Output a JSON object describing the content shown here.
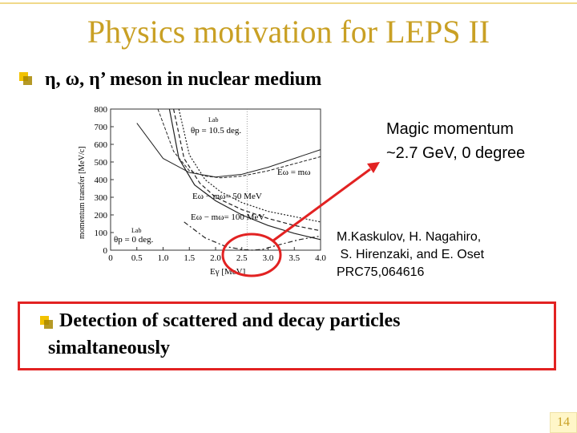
{
  "slide": {
    "title": "Physics motivation for LEPS II",
    "bullet1": "η,  ω, η’ meson in nuclear medium",
    "bullet2_line1": "Detection of scattered and decay particles",
    "bullet2_line2": "simaltaneously",
    "page_number": "14"
  },
  "annotations": {
    "magic_line1": "Magic momentum",
    "magic_line2": "~2.7 GeV, 0 degree",
    "ref_line1": "M.Kaskulov, H. Nagahiro,",
    "ref_line2": " S. Hirenzaki, and E. Oset",
    "ref_line3": "PRC75,064616"
  },
  "figure_labels": {
    "ylabel": "momentum transfer [MeV/c]",
    "xlabel": "Eγ [MeV]",
    "lab_top": "Lab",
    "theta_top": "θp = 10.5 deg.",
    "lab_bottom": "Lab",
    "theta_bottom": "θp = 0 deg.",
    "curve1": "Eω = mω",
    "curve2": "Eω − mω= 50 MeV",
    "curve3": "Eω − mω= 100 MeV"
  },
  "colors": {
    "title": "#c9a024",
    "bullet": "#f2c200",
    "highlight": "#e22222"
  },
  "chart_data": {
    "type": "line",
    "xlabel": "Eγ [MeV]",
    "ylabel": "momentum transfer [MeV/c]",
    "xlim": [
      0,
      4.0
    ],
    "ylim": [
      0,
      800
    ],
    "x_ticks": [
      "0",
      "0.5",
      "1.0",
      "1.5",
      "2.0",
      "2.5",
      "3.0",
      "3.5",
      "4.0"
    ],
    "y_ticks": [
      "0",
      "100",
      "200",
      "300",
      "400",
      "500",
      "600",
      "700",
      "800"
    ],
    "series": [
      {
        "name": "Eω = mω",
        "x": [
          1.12,
          1.3,
          1.6,
          2.0,
          2.5,
          3.0,
          3.5,
          4.0
        ],
        "y": [
          800,
          520,
          370,
          280,
          200,
          140,
          95,
          60
        ]
      },
      {
        "name": "Eω − mω= 50 MeV",
        "x": [
          1.2,
          1.4,
          1.7,
          2.0,
          2.5,
          3.0,
          3.5,
          4.0
        ],
        "y": [
          800,
          520,
          380,
          300,
          230,
          180,
          140,
          110
        ]
      },
      {
        "name": "Eω − mω= 100 MeV",
        "x": [
          1.3,
          1.5,
          1.8,
          2.1,
          2.5,
          3.0,
          3.5,
          4.0
        ],
        "y": [
          800,
          540,
          400,
          330,
          270,
          220,
          190,
          160
        ]
      },
      {
        "x": [
          1.4,
          1.8,
          2.2,
          2.5,
          2.7,
          2.9,
          3.2,
          3.6,
          4.0
        ],
        "y": [
          160,
          70,
          20,
          4,
          0,
          5,
          30,
          60,
          80
        ]
      },
      {
        "x": [
          0.5,
          1.0,
          1.5,
          2.0,
          2.5,
          3.0,
          3.5,
          4.0
        ],
        "y": [
          720,
          520,
          440,
          415,
          430,
          470,
          520,
          570
        ]
      },
      {
        "x": [
          0.9,
          1.2,
          1.5,
          1.8,
          2.1,
          2.5,
          3.0,
          3.5,
          4.0
        ],
        "y": [
          800,
          560,
          450,
          420,
          410,
          420,
          450,
          490,
          530
        ]
      }
    ],
    "grid": true
  }
}
